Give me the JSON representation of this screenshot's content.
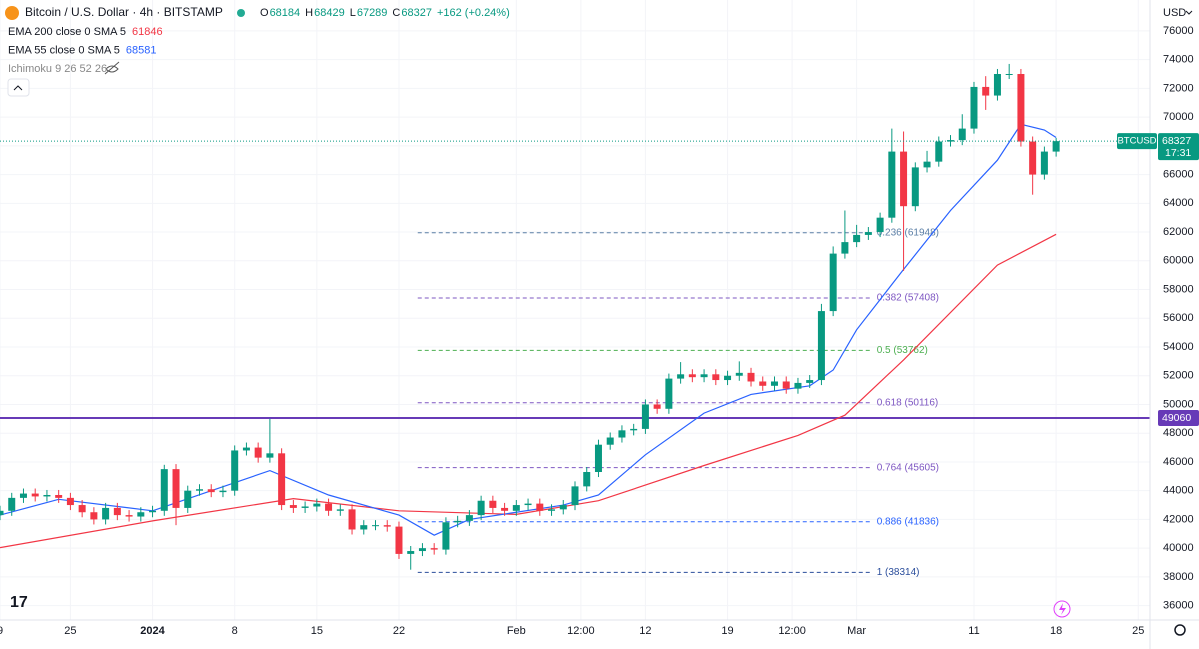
{
  "chart_data": {
    "type": "candlestick",
    "title": "Bitcoin / U.S. Dollar · 4h · BITSTAMP",
    "ohlc": [
      {
        "label": "O",
        "value": 68184
      },
      {
        "label": "H",
        "value": 68429
      },
      {
        "label": "L",
        "value": 67289
      },
      {
        "label": "C",
        "value": 68327
      }
    ],
    "change": "+162 (+0.24%)",
    "indicators": [
      {
        "name": "EMA 200 close 0 SMA 5",
        "value": 61846,
        "color": "#f23645"
      },
      {
        "name": "EMA 55 close 0 SMA 5",
        "value": 68581,
        "color": "#2962ff"
      },
      {
        "name": "Ichimoku 9 26 52 26"
      }
    ],
    "currency": "USD",
    "symbol": "BTCUSD",
    "last_price": 68327,
    "countdown": "17:31",
    "ylim": [
      35000,
      78150
    ],
    "yticks": [
      36000,
      38000,
      40000,
      42000,
      44000,
      46000,
      48000,
      50000,
      52000,
      54000,
      56000,
      58000,
      60000,
      62000,
      64000,
      66000,
      68000,
      70000,
      72000,
      74000,
      76000
    ],
    "xlim": [
      0,
      98
    ],
    "xticks": [
      {
        "value": 0,
        "label": "9"
      },
      {
        "value": 6,
        "label": "25"
      },
      {
        "value": 13,
        "label": "2024",
        "bold": true
      },
      {
        "value": 20,
        "label": "8"
      },
      {
        "value": 27,
        "label": "15"
      },
      {
        "value": 34,
        "label": "22"
      },
      {
        "value": 44,
        "label": "Feb"
      },
      {
        "value": 49.5,
        "label": "12:00"
      },
      {
        "value": 55,
        "label": "12"
      },
      {
        "value": 62,
        "label": "19"
      },
      {
        "value": 67.5,
        "label": "12:00"
      },
      {
        "value": 73,
        "label": "Mar"
      },
      {
        "value": 83,
        "label": "11"
      },
      {
        "value": 90,
        "label": "18"
      },
      {
        "value": 97,
        "label": "25"
      }
    ],
    "grid": true,
    "up_color": "#089981",
    "down_color": "#f23645",
    "x": [
      0,
      1,
      2,
      3,
      4,
      5,
      6,
      7,
      8,
      9,
      10,
      11,
      12,
      13,
      14,
      15,
      16,
      17,
      18,
      19,
      20,
      21,
      22,
      23,
      24,
      25,
      26,
      27,
      28,
      29,
      30,
      31,
      32,
      33,
      34,
      35,
      36,
      37,
      38,
      39,
      40,
      41,
      42,
      43,
      44,
      45,
      46,
      47,
      48,
      49,
      50,
      51,
      52,
      53,
      54,
      55,
      56,
      57,
      58,
      59,
      60,
      61,
      62,
      63,
      64,
      65,
      66,
      67,
      68,
      69,
      70,
      71,
      72,
      73,
      74,
      75,
      76,
      77,
      78,
      79,
      80,
      81,
      82,
      83,
      84,
      85,
      86,
      87,
      88,
      89,
      90
    ],
    "candles": [
      [
        42300,
        42950,
        41950,
        42600
      ],
      [
        42600,
        43850,
        42250,
        43500
      ],
      [
        43500,
        44150,
        43150,
        43800
      ],
      [
        43800,
        44150,
        43250,
        43600
      ],
      [
        43600,
        44050,
        43250,
        43700
      ],
      [
        43700,
        44050,
        43150,
        43500
      ],
      [
        43500,
        43850,
        42650,
        43000
      ],
      [
        43000,
        43350,
        42150,
        42500
      ],
      [
        42500,
        42850,
        41650,
        42000
      ],
      [
        42000,
        43150,
        41650,
        42800
      ],
      [
        42800,
        43150,
        41950,
        42300
      ],
      [
        42300,
        42650,
        41850,
        42200
      ],
      [
        42200,
        42850,
        41850,
        42500
      ],
      [
        42500,
        42950,
        42150,
        42600
      ],
      [
        42600,
        45800,
        42250,
        45500
      ],
      [
        45500,
        45850,
        41600,
        42800
      ],
      [
        42800,
        44350,
        42450,
        44000
      ],
      [
        44000,
        44450,
        43650,
        44100
      ],
      [
        44100,
        44450,
        43550,
        43900
      ],
      [
        43900,
        44350,
        43550,
        44000
      ],
      [
        44000,
        47150,
        43650,
        46800
      ],
      [
        46800,
        47350,
        46450,
        47000
      ],
      [
        47000,
        47350,
        45950,
        46300
      ],
      [
        46300,
        49000,
        45950,
        46600
      ],
      [
        46600,
        46950,
        42650,
        43000
      ],
      [
        43000,
        43350,
        42450,
        42800
      ],
      [
        42800,
        43250,
        42450,
        42900
      ],
      [
        42900,
        43450,
        42550,
        43100
      ],
      [
        43100,
        43450,
        42250,
        42600
      ],
      [
        42600,
        43050,
        42250,
        42700
      ],
      [
        42700,
        43050,
        40950,
        41300
      ],
      [
        41300,
        41950,
        40950,
        41600
      ],
      [
        41600,
        41950,
        41250,
        41600
      ],
      [
        41600,
        41950,
        41150,
        41500
      ],
      [
        41500,
        41850,
        39250,
        39600
      ],
      [
        39600,
        40150,
        38500,
        39800
      ],
      [
        39800,
        40350,
        39450,
        40000
      ],
      [
        40000,
        40350,
        39550,
        39900
      ],
      [
        39900,
        42150,
        39550,
        41800
      ],
      [
        41800,
        42250,
        41450,
        41900
      ],
      [
        41900,
        42650,
        41550,
        42300
      ],
      [
        42300,
        43650,
        41950,
        43300
      ],
      [
        43300,
        43650,
        42450,
        42800
      ],
      [
        42800,
        43150,
        42250,
        42600
      ],
      [
        42600,
        43350,
        42250,
        43000
      ],
      [
        43000,
        43450,
        42650,
        43100
      ],
      [
        43100,
        43450,
        42250,
        42600
      ],
      [
        42600,
        43050,
        42250,
        42700
      ],
      [
        42700,
        43350,
        42350,
        43000
      ],
      [
        43000,
        44650,
        42650,
        44300
      ],
      [
        44300,
        45650,
        43950,
        45300
      ],
      [
        45300,
        47550,
        44950,
        47200
      ],
      [
        47200,
        48050,
        46850,
        47700
      ],
      [
        47700,
        48550,
        47350,
        48200
      ],
      [
        48200,
        48650,
        47850,
        48300
      ],
      [
        48300,
        50350,
        47950,
        50000
      ],
      [
        50000,
        50350,
        49350,
        49700
      ],
      [
        49700,
        52150,
        49350,
        51800
      ],
      [
        51800,
        52950,
        51450,
        52100
      ],
      [
        52100,
        52450,
        51550,
        51900
      ],
      [
        51900,
        52450,
        51550,
        52100
      ],
      [
        52100,
        52450,
        51350,
        51700
      ],
      [
        51700,
        52350,
        51350,
        52000
      ],
      [
        52000,
        53000,
        51650,
        52200
      ],
      [
        52200,
        52550,
        51250,
        51600
      ],
      [
        51600,
        51950,
        50950,
        51300
      ],
      [
        51300,
        51950,
        50950,
        51600
      ],
      [
        51600,
        51950,
        50750,
        51100
      ],
      [
        51100,
        51850,
        50750,
        51500
      ],
      [
        51500,
        52050,
        51150,
        51700
      ],
      [
        51700,
        57000,
        51350,
        56500
      ],
      [
        56500,
        61000,
        56150,
        60500
      ],
      [
        60500,
        63500,
        60150,
        61300
      ],
      [
        61300,
        62500,
        60950,
        61800
      ],
      [
        61800,
        62350,
        61450,
        62000
      ],
      [
        62000,
        63350,
        61650,
        63000
      ],
      [
        63000,
        69200,
        62650,
        67600
      ],
      [
        67600,
        69000,
        59300,
        63800
      ],
      [
        63800,
        66850,
        63450,
        66500
      ],
      [
        66500,
        67650,
        66150,
        66900
      ],
      [
        66900,
        68650,
        66550,
        68300
      ],
      [
        68300,
        68750,
        67950,
        68400
      ],
      [
        68400,
        70200,
        68050,
        69200
      ],
      [
        69200,
        72450,
        68850,
        72100
      ],
      [
        72100,
        72850,
        70500,
        71500
      ],
      [
        71500,
        73350,
        71150,
        73000
      ],
      [
        73000,
        73700,
        72650,
        73000
      ],
      [
        73000,
        73350,
        67950,
        68300
      ],
      [
        68300,
        68650,
        64600,
        66000
      ],
      [
        66000,
        67950,
        65650,
        67600
      ],
      [
        67600,
        68550,
        67250,
        68327
      ]
    ],
    "series": [
      {
        "name": "EMA 200",
        "color": "#f23645",
        "x": [
          0,
          13,
          25,
          34,
          44,
          51,
          60,
          68,
          72,
          77,
          85,
          90
        ],
        "values": [
          40040,
          41900,
          43450,
          42600,
          42350,
          43300,
          45750,
          47850,
          49250,
          53100,
          59700,
          61846
        ]
      },
      {
        "name": "EMA 55",
        "color": "#2962ff",
        "x": [
          0,
          5,
          13,
          23,
          28,
          34,
          37,
          40,
          48,
          51,
          55,
          60,
          64,
          69,
          71,
          73,
          77,
          81,
          85,
          87,
          89,
          90
        ],
        "values": [
          42300,
          43400,
          42600,
          45400,
          43700,
          42300,
          40900,
          42000,
          43000,
          43700,
          46500,
          49400,
          50700,
          51300,
          52400,
          55200,
          59400,
          63500,
          67000,
          69500,
          69100,
          68581
        ]
      }
    ],
    "fib_range": [
      35.6,
      74.2
    ],
    "fib_levels": [
      {
        "label": "0.236 (61948)",
        "value": 61948,
        "color": "#5b7fa6"
      },
      {
        "label": "0.382 (57408)",
        "value": 57408,
        "color": "#7e57c2"
      },
      {
        "label": "0.5 (53762)",
        "value": 53762,
        "color": "#4caf50"
      },
      {
        "label": "0.618 (50116)",
        "value": 50116,
        "color": "#7e57c2"
      },
      {
        "label": "0.764 (45605)",
        "value": 45605,
        "color": "#7e57c2"
      },
      {
        "label": "0.886 (41836)",
        "value": 41836,
        "color": "#2962ff"
      },
      {
        "label": "1 (38314)",
        "value": 38314,
        "color": "#2a4d9b"
      }
    ],
    "hline": {
      "value": 49060,
      "color": "#673ab7"
    }
  }
}
